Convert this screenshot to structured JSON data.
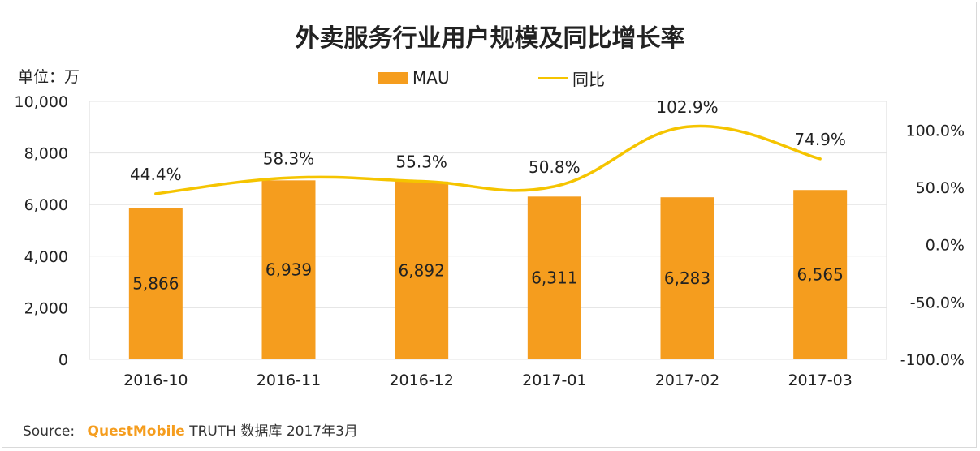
{
  "chart_data": {
    "type": "bar+line",
    "title": "外卖服务行业用户规模及同比增长率",
    "unit_label": "单位：万",
    "categories": [
      "2016-10",
      "2016-11",
      "2016-12",
      "2017-01",
      "2017-02",
      "2017-03"
    ],
    "series": [
      {
        "name": "MAU",
        "type": "bar",
        "axis": "left",
        "values": [
          5866,
          6939,
          6892,
          6311,
          6283,
          6565
        ],
        "labels": [
          "5,866",
          "6,939",
          "6,892",
          "6,311",
          "6,283",
          "6,565"
        ],
        "color": "#f59d1e"
      },
      {
        "name": "同比",
        "type": "line",
        "axis": "right",
        "values": [
          44.4,
          58.3,
          55.3,
          50.8,
          102.9,
          74.9
        ],
        "labels": [
          "44.4%",
          "58.3%",
          "55.3%",
          "50.8%",
          "102.9%",
          "74.9%"
        ],
        "color": "#f5c400"
      }
    ],
    "y_left": {
      "range": [
        0,
        10000
      ],
      "ticks": [
        0,
        2000,
        4000,
        6000,
        8000,
        10000
      ],
      "tick_labels": [
        "0",
        "2,000",
        "4,000",
        "6,000",
        "8,000",
        "10,000"
      ]
    },
    "y_right": {
      "range": [
        -100,
        125
      ],
      "ticks": [
        -100,
        -50,
        0,
        50,
        100
      ],
      "tick_labels": [
        "-100.0%",
        "-50.0%",
        "0.0%",
        "50.0%",
        "100.0%"
      ]
    },
    "grid": true,
    "legend_position": "top-center"
  },
  "source": {
    "prefix": "Source:",
    "brand": "QuestMobile",
    "suffix": "TRUTH 数据库 2017年3月"
  }
}
